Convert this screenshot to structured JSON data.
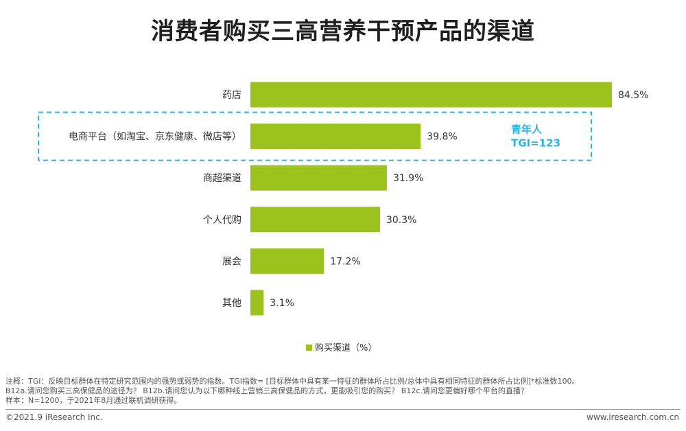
{
  "title": "消费者购买三高营养干预产品的渠道",
  "colors": {
    "bar": "#9cc31d",
    "highlight": "#28b4e0"
  },
  "chart_data": {
    "type": "bar",
    "orientation": "horizontal",
    "categories": [
      "药店",
      "电商平台（如淘宝、京东健康、微店等）",
      "商超渠道",
      "个人代购",
      "展会",
      "其他"
    ],
    "series": [
      {
        "name": "购买渠道（%）",
        "values": [
          84.5,
          39.8,
          31.9,
          30.3,
          17.2,
          3.1
        ]
      }
    ],
    "value_labels": [
      "84.5%",
      "39.8%",
      "31.9%",
      "30.3%",
      "17.2%",
      "3.1%"
    ],
    "xlim": [
      0,
      84.5
    ],
    "grid": false,
    "legend_position": "bottom",
    "highlight": {
      "category_index": 1,
      "lines": [
        "青年人",
        "TGI=123"
      ]
    }
  },
  "notes": {
    "line1": "注释：TGI：反映目标群体在特定研究范围内的强势或弱势的指数。TGI指数= [目标群体中具有某一特征的群体所占比例/总体中具有相同特征的群体所占比例]*标准数100。",
    "line2": "B12a.请问您购买三高保健品的途径为？ B12b.请问您认为以下哪种线上营销三高保健品的方式，更能吸引您的购买？ B12c.请问您更偏好哪个平台的直播？",
    "line3": "样本：N=1200，于2021年8月通过联机调研获得。"
  },
  "footer": {
    "copyright": "©2021.9 iResearch Inc.",
    "website": "www.iresearch.com.cn"
  }
}
